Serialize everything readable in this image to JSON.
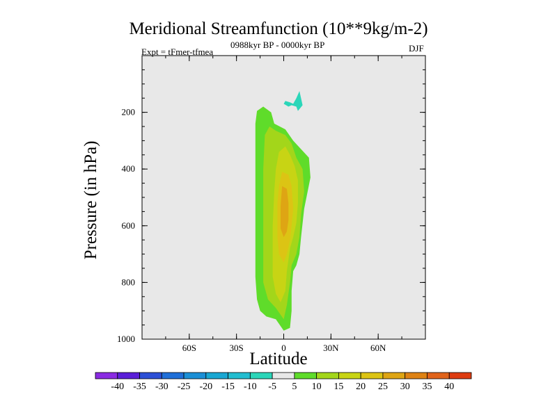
{
  "chart_data": {
    "type": "contour",
    "title": "Meridional Streamfunction (10**9kg/m-2)",
    "subtitle_left": "Expt = tFmer-tfmea",
    "subtitle_center": "0988kyr BP - 0000kyr BP",
    "subtitle_right": "DJF",
    "xlabel": "Latitude",
    "ylabel": "Pressure (in hPa)",
    "xlim": [
      -90,
      90
    ],
    "ylim": [
      1000,
      0
    ],
    "x_ticks": [
      {
        "value": -60,
        "label": "60S"
      },
      {
        "value": -30,
        "label": "30S"
      },
      {
        "value": 0,
        "label": "0"
      },
      {
        "value": 30,
        "label": "30N"
      },
      {
        "value": 60,
        "label": "60N"
      }
    ],
    "y_ticks": [
      {
        "value": 200,
        "label": "200"
      },
      {
        "value": 400,
        "label": "400"
      },
      {
        "value": 600,
        "label": "600"
      },
      {
        "value": 800,
        "label": "800"
      },
      {
        "value": 1000,
        "label": "1000"
      }
    ],
    "colorbar": {
      "labels": [
        "-40",
        "-35",
        "-30",
        "-25",
        "-20",
        "-15",
        "-10",
        "-5",
        "5",
        "10",
        "15",
        "20",
        "25",
        "30",
        "35",
        "40"
      ],
      "colors": [
        "#8a2be2",
        "#5a1fd8",
        "#2c4fd6",
        "#1f6fd8",
        "#1b8fd6",
        "#19a7d2",
        "#22bdd0",
        "#2bd6b9",
        "#e8e8e8",
        "#5fdc2a",
        "#a3d61a",
        "#c8d414",
        "#dcc414",
        "#dea514",
        "#de8214",
        "#e0631a",
        "#de3c10"
      ]
    },
    "regions": [
      {
        "level": 5,
        "color": "#5fdc2a",
        "points": [
          [
            -17,
            195
          ],
          [
            -13,
            180
          ],
          [
            -8,
            200
          ],
          [
            -6,
            240
          ],
          [
            1,
            260
          ],
          [
            6,
            300
          ],
          [
            11,
            330
          ],
          [
            16,
            360
          ],
          [
            17,
            430
          ],
          [
            13,
            540
          ],
          [
            11,
            640
          ],
          [
            10,
            700
          ],
          [
            8,
            740
          ],
          [
            6,
            760
          ],
          [
            5,
            830
          ],
          [
            5,
            900
          ],
          [
            4,
            960
          ],
          [
            0,
            970
          ],
          [
            -5,
            930
          ],
          [
            -11,
            920
          ],
          [
            -15,
            900
          ],
          [
            -17,
            860
          ],
          [
            -18,
            780
          ],
          [
            -18,
            600
          ],
          [
            -18,
            400
          ],
          [
            -18,
            240
          ]
        ]
      },
      {
        "level": 10,
        "color": "#a3d61a",
        "points": [
          [
            -12,
            280
          ],
          [
            -9,
            250
          ],
          [
            -5,
            265
          ],
          [
            1,
            280
          ],
          [
            5,
            310
          ],
          [
            8,
            360
          ],
          [
            12,
            400
          ],
          [
            13,
            480
          ],
          [
            11,
            560
          ],
          [
            10,
            640
          ],
          [
            8,
            700
          ],
          [
            5,
            740
          ],
          [
            4,
            800
          ],
          [
            2,
            880
          ],
          [
            0,
            930
          ],
          [
            -5,
            890
          ],
          [
            -10,
            860
          ],
          [
            -13,
            800
          ],
          [
            -13,
            600
          ],
          [
            -13,
            400
          ]
        ]
      },
      {
        "level": 15,
        "color": "#c8d414",
        "points": [
          [
            -3,
            340
          ],
          [
            1,
            320
          ],
          [
            4,
            350
          ],
          [
            7,
            390
          ],
          [
            9,
            440
          ],
          [
            9,
            520
          ],
          [
            8,
            590
          ],
          [
            6,
            640
          ],
          [
            4,
            680
          ],
          [
            2,
            760
          ],
          [
            1,
            830
          ],
          [
            -2,
            870
          ],
          [
            -5,
            840
          ],
          [
            -7,
            780
          ],
          [
            -7,
            600
          ],
          [
            -6,
            480
          ],
          [
            -5,
            400
          ]
        ]
      },
      {
        "level": 20,
        "color": "#dcc414",
        "points": [
          [
            -1,
            410
          ],
          [
            3,
            420
          ],
          [
            5,
            460
          ],
          [
            6,
            540
          ],
          [
            5,
            600
          ],
          [
            4,
            650
          ],
          [
            2,
            700
          ],
          [
            0,
            730
          ],
          [
            -3,
            700
          ],
          [
            -4,
            640
          ],
          [
            -4,
            520
          ],
          [
            -3,
            460
          ]
        ]
      },
      {
        "level": 25,
        "color": "#dea514",
        "points": [
          [
            -1,
            460
          ],
          [
            2,
            470
          ],
          [
            3,
            520
          ],
          [
            3,
            580
          ],
          [
            2,
            620
          ],
          [
            0,
            640
          ],
          [
            -2,
            610
          ],
          [
            -2,
            530
          ]
        ]
      },
      {
        "level": -5,
        "color": "#2bd6b9",
        "points": [
          [
            6,
            170
          ],
          [
            8,
            150
          ],
          [
            10,
            125
          ],
          [
            12,
            175
          ],
          [
            9,
            195
          ],
          [
            8,
            180
          ],
          [
            5,
            175
          ],
          [
            3,
            180
          ],
          [
            0,
            170
          ],
          [
            1,
            160
          ],
          [
            4,
            165
          ]
        ]
      }
    ]
  }
}
